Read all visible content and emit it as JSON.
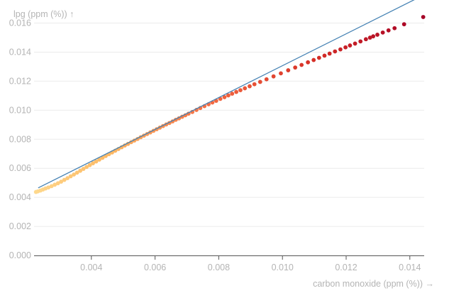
{
  "chart_data": {
    "type": "scatter",
    "title": "",
    "xlabel": "carbon monoxide (ppm (%)) →",
    "ylabel": "lpg (ppm (%)) ↑",
    "xlim": [
      0.0022,
      0.01445
    ],
    "ylim": [
      0,
      0.0172
    ],
    "x_ticks": [
      "0.004",
      "0.006",
      "0.008",
      "0.010",
      "0.012",
      "0.014"
    ],
    "x_tick_values": [
      0.004,
      0.006,
      0.008,
      0.01,
      0.012,
      0.014
    ],
    "y_ticks": [
      "0.000",
      "0.002",
      "0.004",
      "0.006",
      "0.008",
      "0.010",
      "0.012",
      "0.014",
      "0.016"
    ],
    "y_tick_values": [
      0,
      0.002,
      0.004,
      0.006,
      0.008,
      0.01,
      0.012,
      0.014,
      0.016
    ],
    "grid": "horizontal",
    "color_scale": [
      "#fed98e",
      "#fdb863",
      "#f46d43",
      "#d73027",
      "#a50026"
    ],
    "trend_line": {
      "x": [
        0.00233,
        0.01445
      ],
      "y": [
        0.00465,
        0.01795
      ],
      "color": "#4682b4"
    },
    "points": [
      {
        "x": 0.00226,
        "y": 0.00437
      },
      {
        "x": 0.00232,
        "y": 0.00441
      },
      {
        "x": 0.0024,
        "y": 0.00447
      },
      {
        "x": 0.00248,
        "y": 0.00454
      },
      {
        "x": 0.00256,
        "y": 0.00461
      },
      {
        "x": 0.00265,
        "y": 0.00468
      },
      {
        "x": 0.00275,
        "y": 0.00477
      },
      {
        "x": 0.00285,
        "y": 0.00487
      },
      {
        "x": 0.00295,
        "y": 0.00497
      },
      {
        "x": 0.00305,
        "y": 0.00508
      },
      {
        "x": 0.00315,
        "y": 0.0052
      },
      {
        "x": 0.00325,
        "y": 0.00532
      },
      {
        "x": 0.00335,
        "y": 0.00545
      },
      {
        "x": 0.00345,
        "y": 0.00557
      },
      {
        "x": 0.00355,
        "y": 0.0057
      },
      {
        "x": 0.00365,
        "y": 0.00583
      },
      {
        "x": 0.00375,
        "y": 0.00596
      },
      {
        "x": 0.00385,
        "y": 0.00609
      },
      {
        "x": 0.00395,
        "y": 0.00622
      },
      {
        "x": 0.00405,
        "y": 0.00635
      },
      {
        "x": 0.00415,
        "y": 0.00647
      },
      {
        "x": 0.00425,
        "y": 0.0066
      },
      {
        "x": 0.00435,
        "y": 0.00672
      },
      {
        "x": 0.00445,
        "y": 0.00685
      },
      {
        "x": 0.00455,
        "y": 0.00697
      },
      {
        "x": 0.00465,
        "y": 0.00709
      },
      {
        "x": 0.00475,
        "y": 0.00721
      },
      {
        "x": 0.00485,
        "y": 0.00733
      },
      {
        "x": 0.00495,
        "y": 0.00745
      },
      {
        "x": 0.00505,
        "y": 0.00757
      },
      {
        "x": 0.00515,
        "y": 0.00768
      },
      {
        "x": 0.00525,
        "y": 0.0078
      },
      {
        "x": 0.00535,
        "y": 0.00791
      },
      {
        "x": 0.00545,
        "y": 0.00802
      },
      {
        "x": 0.00555,
        "y": 0.00814
      },
      {
        "x": 0.00565,
        "y": 0.00825
      },
      {
        "x": 0.00575,
        "y": 0.00836
      },
      {
        "x": 0.00585,
        "y": 0.00847
      },
      {
        "x": 0.00595,
        "y": 0.00858
      },
      {
        "x": 0.00605,
        "y": 0.00869
      },
      {
        "x": 0.00615,
        "y": 0.0088
      },
      {
        "x": 0.00625,
        "y": 0.00891
      },
      {
        "x": 0.00635,
        "y": 0.00902
      },
      {
        "x": 0.00645,
        "y": 0.00912
      },
      {
        "x": 0.00655,
        "y": 0.00923
      },
      {
        "x": 0.00665,
        "y": 0.00934
      },
      {
        "x": 0.00675,
        "y": 0.00944
      },
      {
        "x": 0.00685,
        "y": 0.00955
      },
      {
        "x": 0.00695,
        "y": 0.00965
      },
      {
        "x": 0.00705,
        "y": 0.00976
      },
      {
        "x": 0.00717,
        "y": 0.00988
      },
      {
        "x": 0.0073,
        "y": 0.01002
      },
      {
        "x": 0.00742,
        "y": 0.01015
      },
      {
        "x": 0.00755,
        "y": 0.01028
      },
      {
        "x": 0.00768,
        "y": 0.01041
      },
      {
        "x": 0.0078,
        "y": 0.01053
      },
      {
        "x": 0.00792,
        "y": 0.01065
      },
      {
        "x": 0.00805,
        "y": 0.01078
      },
      {
        "x": 0.00818,
        "y": 0.0109
      },
      {
        "x": 0.0083,
        "y": 0.01102
      },
      {
        "x": 0.00842,
        "y": 0.01114
      },
      {
        "x": 0.00855,
        "y": 0.01126
      },
      {
        "x": 0.00868,
        "y": 0.01138
      },
      {
        "x": 0.00882,
        "y": 0.01151
      },
      {
        "x": 0.00897,
        "y": 0.01165
      },
      {
        "x": 0.00912,
        "y": 0.01179
      },
      {
        "x": 0.0093,
        "y": 0.01195
      },
      {
        "x": 0.0095,
        "y": 0.01213
      },
      {
        "x": 0.00972,
        "y": 0.01233
      },
      {
        "x": 0.00995,
        "y": 0.01254
      },
      {
        "x": 0.01018,
        "y": 0.01275
      },
      {
        "x": 0.0104,
        "y": 0.01294
      },
      {
        "x": 0.0106,
        "y": 0.01312
      },
      {
        "x": 0.0108,
        "y": 0.0133
      },
      {
        "x": 0.01098,
        "y": 0.01346
      },
      {
        "x": 0.01115,
        "y": 0.01361
      },
      {
        "x": 0.01132,
        "y": 0.01376
      },
      {
        "x": 0.01148,
        "y": 0.0139
      },
      {
        "x": 0.01165,
        "y": 0.01405
      },
      {
        "x": 0.01182,
        "y": 0.01419
      },
      {
        "x": 0.01198,
        "y": 0.01433
      },
      {
        "x": 0.01212,
        "y": 0.01446
      },
      {
        "x": 0.01228,
        "y": 0.01459
      },
      {
        "x": 0.01245,
        "y": 0.01474
      },
      {
        "x": 0.01262,
        "y": 0.01489
      },
      {
        "x": 0.01275,
        "y": 0.015
      },
      {
        "x": 0.01285,
        "y": 0.01509
      },
      {
        "x": 0.01298,
        "y": 0.0152
      },
      {
        "x": 0.01315,
        "y": 0.01535
      },
      {
        "x": 0.01333,
        "y": 0.0155
      },
      {
        "x": 0.01352,
        "y": 0.01565
      },
      {
        "x": 0.01382,
        "y": 0.01592
      },
      {
        "x": 0.01442,
        "y": 0.01642
      }
    ]
  }
}
